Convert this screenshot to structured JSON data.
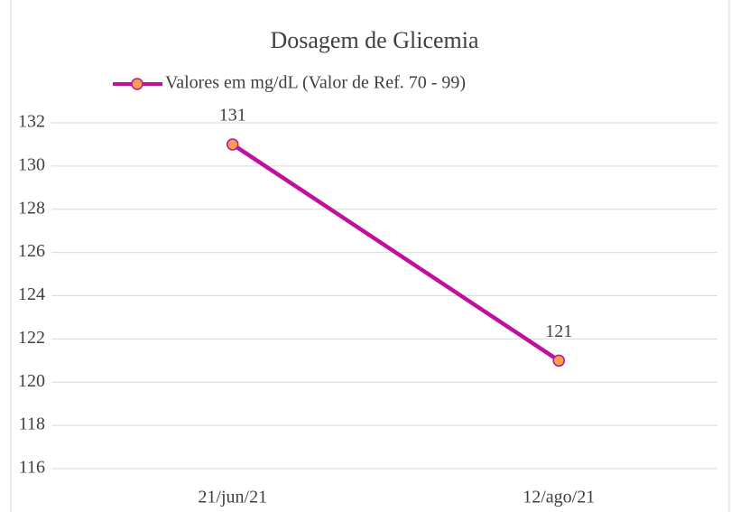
{
  "chart_data": {
    "type": "line",
    "title": "Dosagem de Glicemia",
    "categories": [
      "21/jun/21",
      "12/ago/21"
    ],
    "series": [
      {
        "name": "Valores em mg/dL (Valor de Ref. 70 - 99)",
        "color": "#c0109e",
        "marker_color": "#f5a04a",
        "values": [
          131,
          121
        ]
      }
    ],
    "ylim": [
      116,
      132
    ],
    "yticks": [
      116,
      118,
      120,
      122,
      124,
      126,
      128,
      130,
      132
    ],
    "grid": true,
    "data_labels": true
  }
}
